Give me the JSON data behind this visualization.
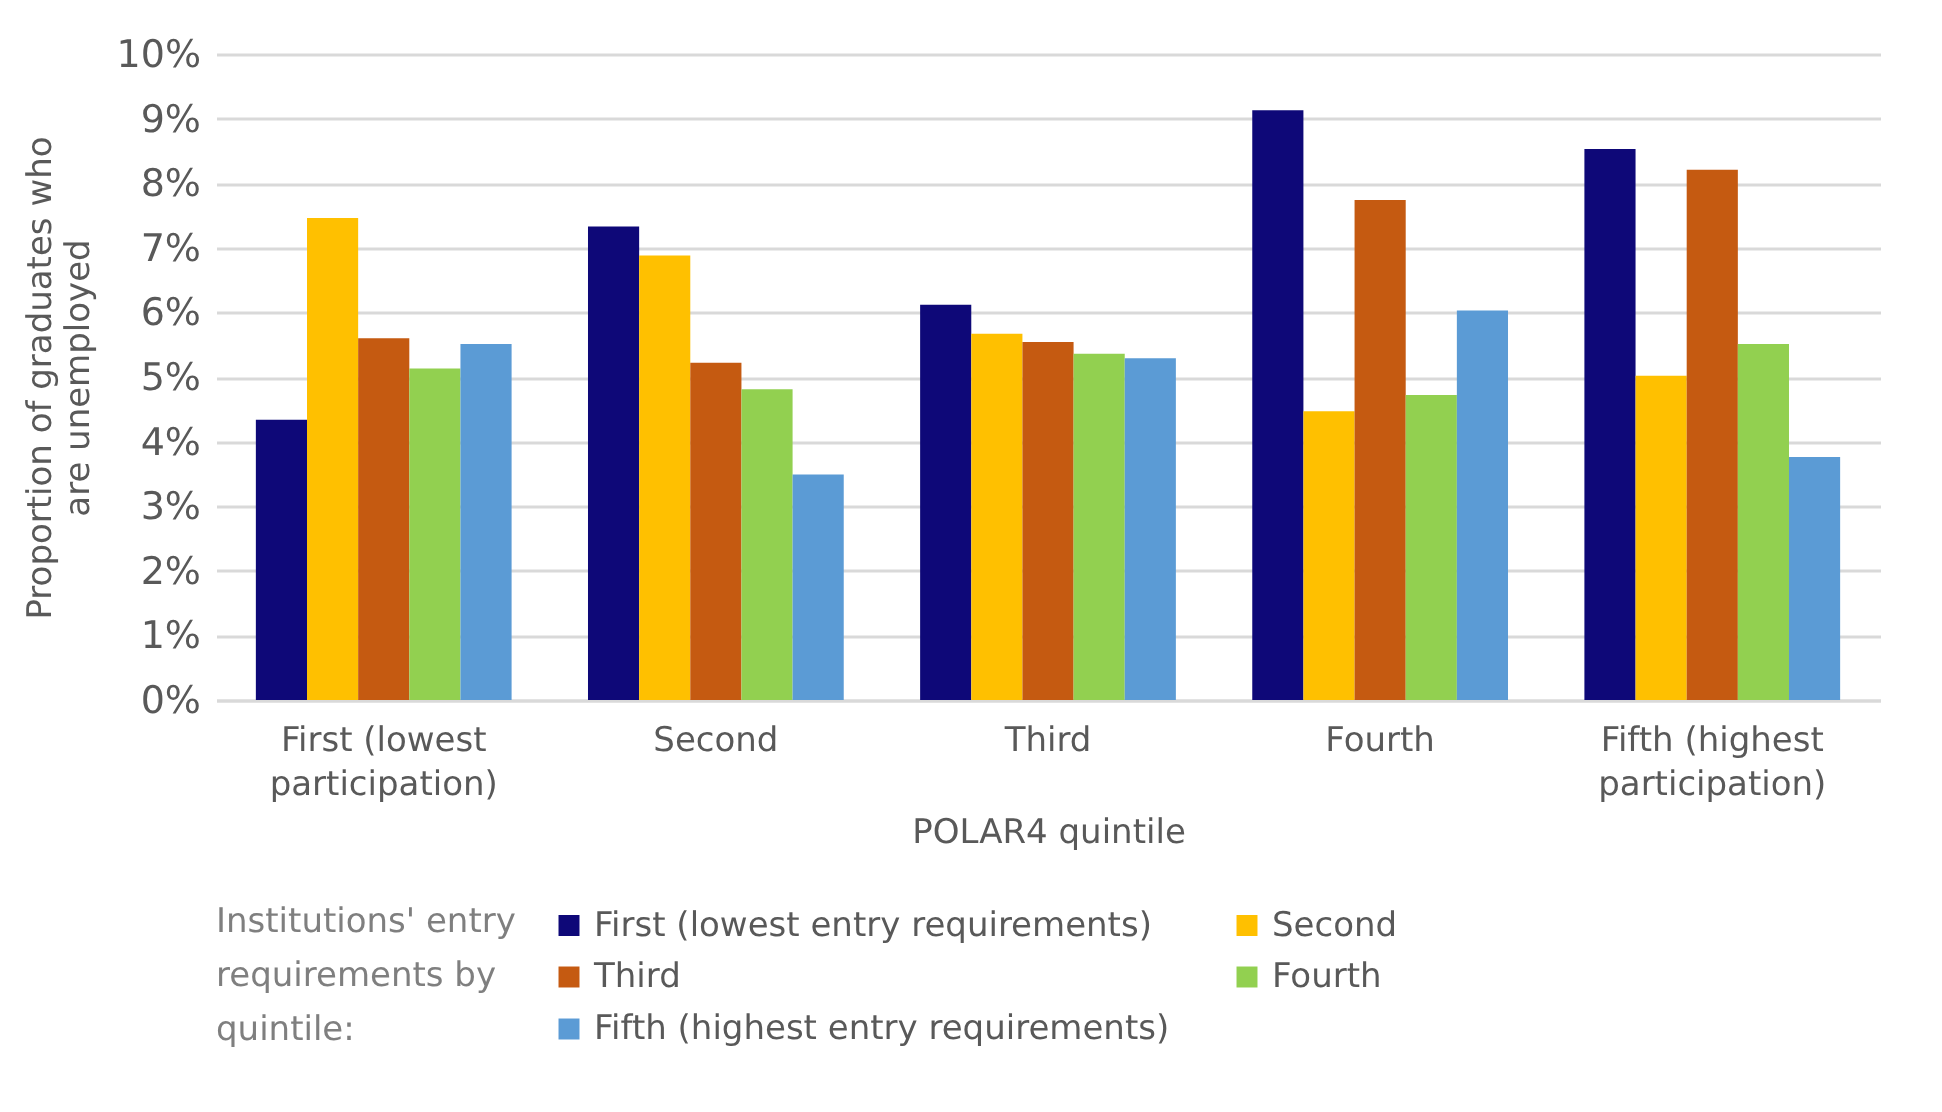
{
  "chart_data": {
    "type": "bar",
    "xlabel": "POLAR4 quintile",
    "ylabel": "Proportion of graduates who are unemployed",
    "legend_title": "Institutions' entry requirements by quintile:",
    "categories": [
      "First (lowest participation)",
      "Second",
      "Third",
      "Fourth",
      "Fifth (highest participation)"
    ],
    "series": [
      {
        "name": "First (lowest entry requirements)",
        "color": "#0e0878",
        "values": [
          4.34,
          7.33,
          6.12,
          9.13,
          8.53
        ]
      },
      {
        "name": "Second",
        "color": "#ffc000",
        "values": [
          7.46,
          6.88,
          5.67,
          4.47,
          5.02
        ]
      },
      {
        "name": "Third",
        "color": "#c55a11",
        "values": [
          5.6,
          5.22,
          5.54,
          7.74,
          8.21
        ]
      },
      {
        "name": "Fourth",
        "color": "#92d050",
        "values": [
          5.13,
          4.81,
          5.36,
          4.72,
          5.51
        ]
      },
      {
        "name": "Fifth (highest entry requirements)",
        "color": "#5b9bd5",
        "values": [
          5.51,
          3.49,
          5.29,
          6.03,
          3.76
        ]
      }
    ],
    "ylim": [
      0,
      10
    ],
    "yticks": [
      {
        "value": 0,
        "label": "0%"
      },
      {
        "value": 1,
        "label": "1%"
      },
      {
        "value": 2,
        "label": "2%"
      },
      {
        "value": 3,
        "label": "3%"
      },
      {
        "value": 4,
        "label": "4%"
      },
      {
        "value": 5,
        "label": "5%"
      },
      {
        "value": 6,
        "label": "6%"
      },
      {
        "value": 7,
        "label": "7%"
      },
      {
        "value": 8,
        "label": "8%"
      },
      {
        "value": 9,
        "label": "9%"
      },
      {
        "value": 10,
        "label": "10%"
      }
    ],
    "grid": "y",
    "legend": "bottom"
  }
}
